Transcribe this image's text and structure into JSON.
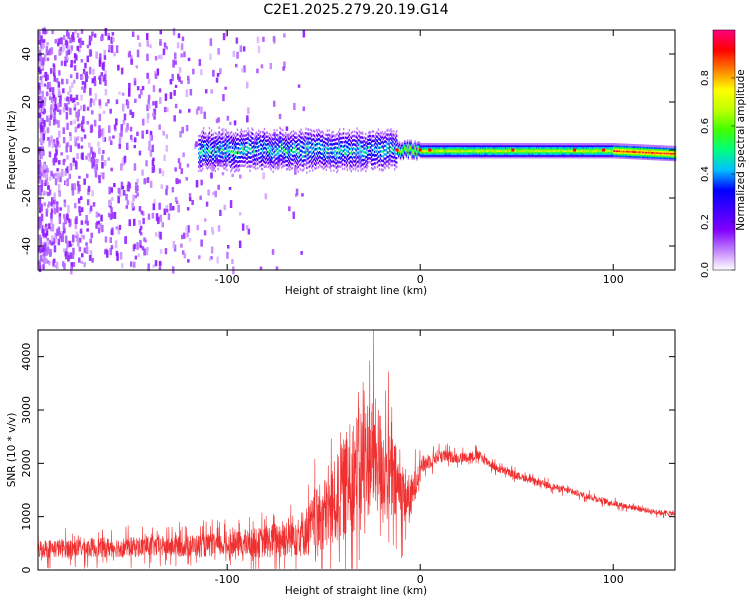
{
  "title": "C2E1.2025.279.20.19.G14",
  "chart_data": [
    {
      "type": "heatmap",
      "name": "spectrogram",
      "xlabel": "Height of straight line (km)",
      "ylabel": "Frequency (Hz)",
      "xlim": [
        -198,
        132
      ],
      "ylim": [
        -50,
        50
      ],
      "xticks": [
        -100,
        0,
        100
      ],
      "yticks": [
        -40,
        -20,
        0,
        20,
        40
      ],
      "colorbar": {
        "label": "Normalized spectral amplitude",
        "range": [
          0,
          1
        ],
        "ticks": [
          0.0,
          0.2,
          0.4,
          0.6,
          0.8
        ],
        "colors": [
          "#ffffff",
          "#c080ff",
          "#8000ff",
          "#4000ff",
          "#0000ff",
          "#00c0ff",
          "#00ff80",
          "#40ff00",
          "#c0ff00",
          "#ffff00",
          "#ff8000",
          "#ff0000",
          "#ff0080"
        ]
      },
      "noise_band": {
        "x_range": [
          -198,
          -60
        ],
        "freq_range": [
          -50,
          50
        ]
      },
      "signal_band": {
        "x_range": [
          -115,
          132
        ],
        "center_hz": 0,
        "halfwidth_hz_start": 6,
        "halfwidth_hz_end": 1.5
      }
    },
    {
      "type": "line",
      "name": "snr",
      "xlabel": "Height of straight line (km)",
      "ylabel": "SNR (10 * v/v)",
      "xlim": [
        -198,
        132
      ],
      "ylim": [
        0,
        4500
      ],
      "xticks": [
        -100,
        0,
        100
      ],
      "yticks": [
        0,
        1000,
        2000,
        3000,
        4000
      ],
      "color": "#f03030",
      "envelope": {
        "x": [
          -198,
          -150,
          -100,
          -80,
          -60,
          -45,
          -35,
          -25,
          -20,
          -15,
          -10,
          -5,
          0,
          10,
          20,
          30,
          40,
          60,
          80,
          100,
          120,
          132
        ],
        "mean": [
          400,
          430,
          470,
          520,
          700,
          1200,
          1800,
          2200,
          2000,
          1700,
          1500,
          1300,
          1950,
          2150,
          2100,
          2150,
          1900,
          1650,
          1450,
          1250,
          1100,
          1050
        ],
        "amplitude": [
          350,
          380,
          450,
          600,
          900,
          1600,
          2200,
          2300,
          2000,
          1800,
          1200,
          900,
          350,
          250,
          200,
          200,
          150,
          130,
          120,
          110,
          100,
          100
        ]
      }
    }
  ]
}
